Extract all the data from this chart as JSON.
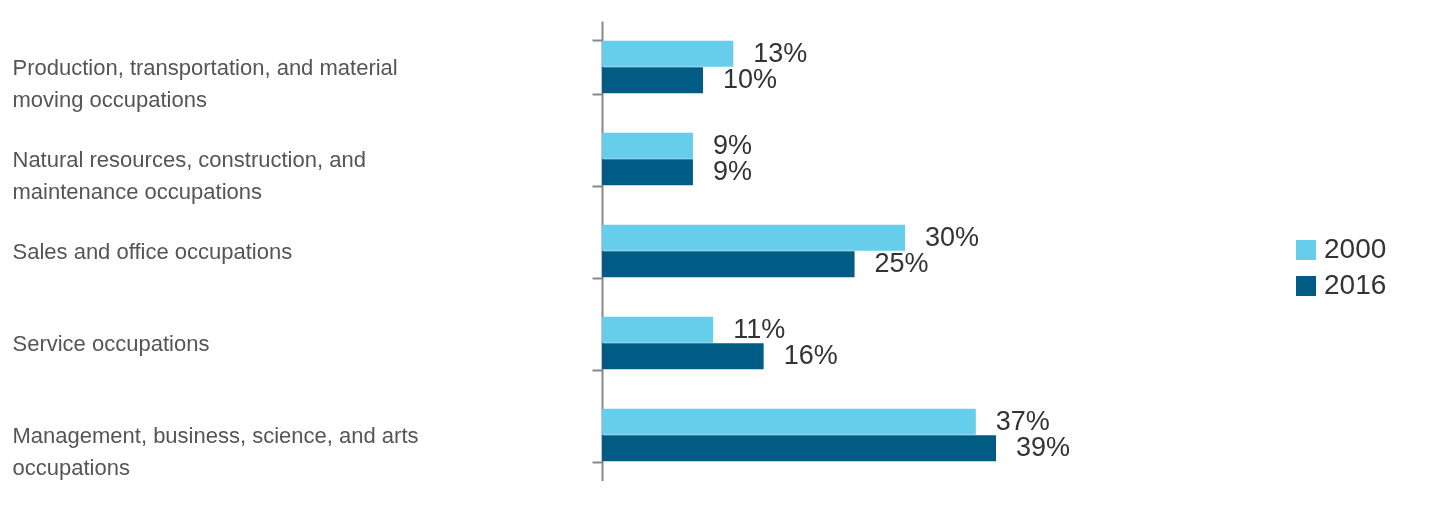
{
  "chart_data": {
    "type": "bar",
    "orientation": "horizontal",
    "categories": [
      "Production, transportation, and material moving occupations",
      "Natural resources, construction, and maintenance occupations",
      "Sales and office occupations",
      "Service occupations",
      "Management, business, science, and arts occupations"
    ],
    "series": [
      {
        "name": "2000",
        "color": "#66cdea",
        "values": [
          13,
          9,
          30,
          11,
          37
        ],
        "value_labels": [
          "13%",
          "9%",
          "30%",
          "11%",
          "37%"
        ]
      },
      {
        "name": "2016",
        "color": "#005b85",
        "values": [
          10,
          9,
          25,
          16,
          39
        ],
        "value_labels": [
          "10%",
          "9%",
          "25%",
          "16%",
          "39%"
        ]
      }
    ],
    "legend": "right",
    "grid": false
  }
}
